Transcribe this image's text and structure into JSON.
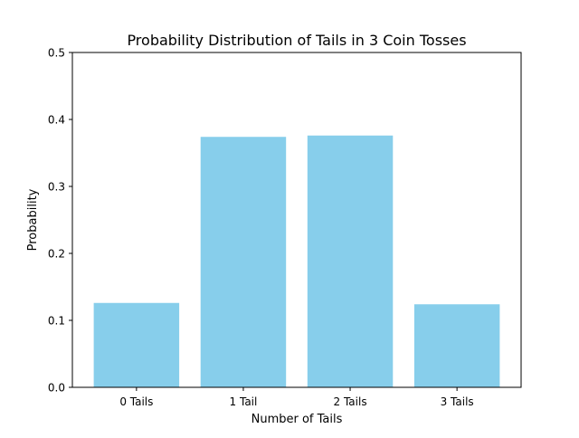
{
  "chart_data": {
    "type": "bar",
    "title": "Probability Distribution of Tails in 3 Coin Tosses",
    "xlabel": "Number of Tails",
    "ylabel": "Probability",
    "categories": [
      "0 Tails",
      "1 Tail",
      "2 Tails",
      "3 Tails"
    ],
    "values": [
      0.126,
      0.374,
      0.376,
      0.124
    ],
    "ylim": [
      0,
      0.5
    ],
    "yticks": [
      "0.0",
      "0.1",
      "0.2",
      "0.3",
      "0.4",
      "0.5"
    ],
    "grid": false,
    "bar_color": "#87ceeb"
  }
}
